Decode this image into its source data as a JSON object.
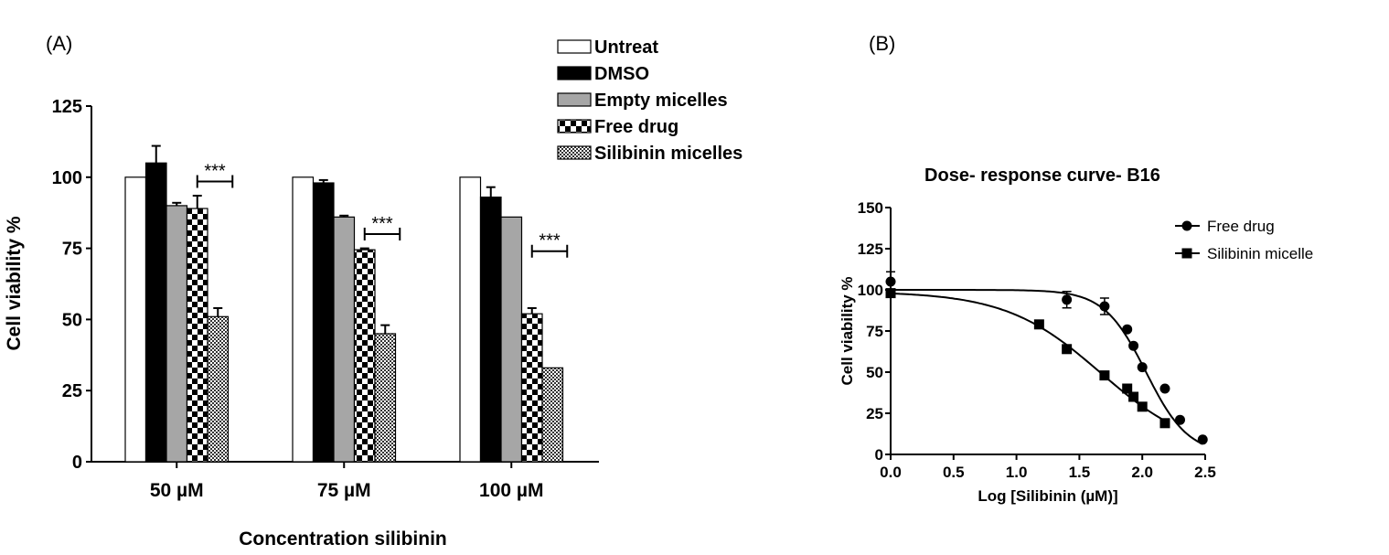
{
  "chart_data": [
    {
      "panel_label": "(A)",
      "type": "bar",
      "title": "",
      "xlabel": "Concentration silibinin",
      "ylabel": "Cell viability %",
      "ylim": [
        0,
        125
      ],
      "yticks": [
        0,
        25,
        50,
        75,
        100,
        125
      ],
      "categories": [
        "50 µM",
        "75 µM",
        "100 µM"
      ],
      "legend_position": "top-right",
      "series": [
        {
          "name": "Untreat",
          "fill": "white",
          "values": [
            100,
            100,
            100
          ],
          "errors": [
            0,
            0,
            0
          ]
        },
        {
          "name": "DMSO",
          "fill": "black",
          "values": [
            105,
            98,
            93
          ],
          "errors": [
            6,
            1,
            3.5
          ]
        },
        {
          "name": "Empty micelles",
          "fill": "gray",
          "values": [
            90,
            86,
            86
          ],
          "errors": [
            1,
            0.5,
            0
          ]
        },
        {
          "name": "Free drug",
          "fill": "checker",
          "values": [
            89,
            74.5,
            52
          ],
          "errors": [
            4.5,
            0.5,
            2
          ]
        },
        {
          "name": "Silibinin micelles",
          "fill": "finechecker",
          "values": [
            51,
            45,
            33
          ],
          "errors": [
            3,
            3,
            0
          ]
        }
      ],
      "annotations": [
        "***",
        "***",
        "***"
      ]
    },
    {
      "panel_label": "(B)",
      "type": "line",
      "title": "Dose- response curve- B16",
      "xlabel": "Log [Silibinin (µM)]",
      "ylabel": "Cell viability %",
      "xlim": [
        0,
        2.5
      ],
      "ylim": [
        0,
        150
      ],
      "xticks": [
        "0.0",
        "0.5",
        "1.0",
        "1.5",
        "2.0",
        "2.5"
      ],
      "yticks": [
        0,
        25,
        50,
        75,
        100,
        125,
        150
      ],
      "legend_position": "top-right",
      "series": [
        {
          "name": "Free drug",
          "marker": "circle",
          "x": [
            0,
            1.4,
            1.7,
            1.88,
            1.93,
            2.0,
            2.18,
            2.3,
            2.48
          ],
          "y": [
            105,
            94,
            90,
            76,
            66,
            53,
            40,
            21,
            9
          ],
          "errors": [
            6,
            5,
            5,
            0,
            0,
            0,
            0,
            0,
            0
          ],
          "fit": {
            "top": 100,
            "bottom": 0,
            "logIC50": 2.03,
            "hill": 2.6
          }
        },
        {
          "name": "Silibinin micelle",
          "marker": "square",
          "x": [
            0,
            1.18,
            1.4,
            1.7,
            1.88,
            1.93,
            2.0,
            2.18
          ],
          "y": [
            98,
            79,
            64,
            48,
            40,
            35,
            29,
            19
          ],
          "errors": [
            0,
            0,
            0,
            0,
            0,
            0,
            0,
            0
          ],
          "fit": {
            "top": 99,
            "bottom": 0,
            "logIC50": 1.67,
            "hill": 1.15
          }
        }
      ]
    }
  ]
}
